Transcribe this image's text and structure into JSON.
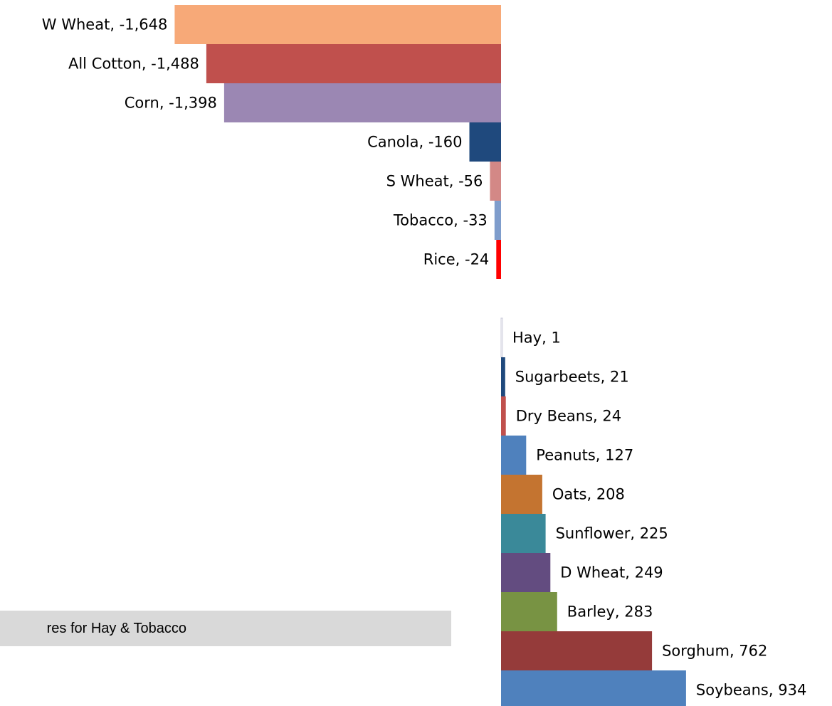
{
  "chart_data": {
    "type": "bar",
    "orientation": "horizontal",
    "categories": [
      "W Wheat",
      "All Cotton",
      "Corn",
      "Canola",
      "S Wheat",
      "Tobacco",
      "Rice",
      "Hay",
      "Sugarbeets",
      "Dry Beans",
      "Peanuts",
      "Oats",
      "Sunflower",
      "D Wheat",
      "Barley",
      "Sorghum",
      "Soybeans"
    ],
    "values": [
      -1648,
      -1488,
      -1398,
      -160,
      -56,
      -33,
      -24,
      1,
      21,
      24,
      127,
      208,
      225,
      249,
      283,
      762,
      934
    ],
    "labels": [
      "W Wheat, -1,648",
      "All Cotton, -1,488",
      "Corn, -1,398",
      "Canola, -160",
      "S Wheat, -56",
      "Tobacco, -33",
      "Rice, -24",
      "Hay, 1",
      "Sugarbeets, 21",
      "Dry Beans, 24",
      "Peanuts, 127",
      "Oats, 208",
      "Sunflower, 225",
      "D Wheat, 249",
      "Barley, 283",
      "Sorghum, 762",
      "Soybeans, 934"
    ],
    "colors": [
      "#F7A978",
      "#C0504D",
      "#9B87B3",
      "#1F497D",
      "#D38886",
      "#7F9DCC",
      "#FF0000",
      "#FFFFFF",
      "#1F497D",
      "#C0504D",
      "#4F81BD",
      "#C47430",
      "#3A8999",
      "#634C80",
      "#789343",
      "#953B3A",
      "#4F81BD"
    ],
    "title": "",
    "xlabel": "",
    "ylabel": "",
    "grid": false,
    "legend": "none"
  },
  "note": {
    "text": "res for Hay & Tobacco"
  }
}
